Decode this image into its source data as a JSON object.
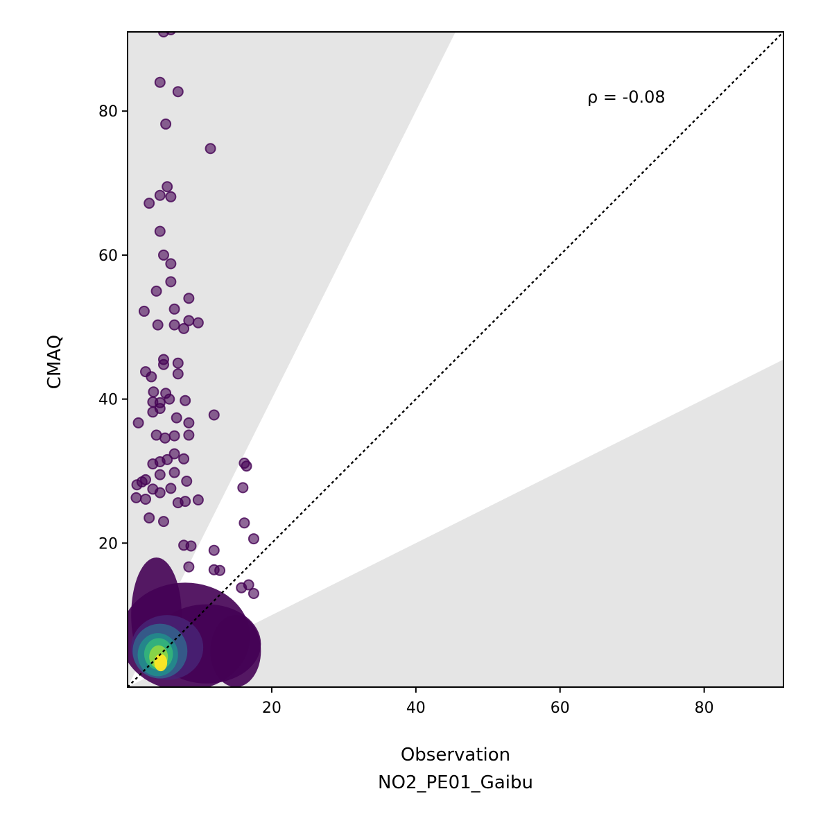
{
  "chart_data": {
    "type": "scatter",
    "title": "",
    "xlabel": "Observation",
    "xlabel_sub": "NO2_PE01_Gaibu",
    "ylabel": "CMAQ",
    "xlim": [
      0,
      91
    ],
    "ylim": [
      0,
      91
    ],
    "x_ticks": [
      20,
      40,
      60,
      80
    ],
    "y_ticks": [
      20,
      40,
      60,
      80
    ],
    "x_tick_labels": [
      "20",
      "40",
      "60",
      "80"
    ],
    "y_tick_labels": [
      "20",
      "40",
      "60",
      "80"
    ],
    "annotation": "ρ = -0.08",
    "reference_line": {
      "style": "dotted",
      "slope": 1,
      "color": "#000000"
    },
    "shaded_regions": [
      {
        "name": "model over factor 2",
        "slope_from": 2,
        "slope_to": "inf",
        "color": "#e5e5e5"
      },
      {
        "name": "model under factor 2",
        "slope_from": 0,
        "slope_to": 0.5,
        "color": "#e5e5e5"
      }
    ],
    "colormap": "viridis (point density)",
    "outlier_points": [
      [
        5,
        91
      ],
      [
        6,
        91.3
      ],
      [
        4.5,
        84
      ],
      [
        7,
        82.7
      ],
      [
        5.3,
        78.2
      ],
      [
        11.5,
        74.8
      ],
      [
        5.5,
        69.5
      ],
      [
        3,
        67.2
      ],
      [
        4.5,
        68.3
      ],
      [
        6,
        68.1
      ],
      [
        4.5,
        63.3
      ],
      [
        5,
        60
      ],
      [
        6,
        58.8
      ],
      [
        4,
        55
      ],
      [
        6,
        56.3
      ],
      [
        2.3,
        52.2
      ],
      [
        8.5,
        54
      ],
      [
        6.5,
        52.5
      ],
      [
        4.2,
        50.3
      ],
      [
        6.5,
        50.3
      ],
      [
        7.8,
        49.8
      ],
      [
        8.5,
        50.9
      ],
      [
        9.8,
        50.6
      ],
      [
        5,
        45.5
      ],
      [
        5,
        44.8
      ],
      [
        7,
        45
      ],
      [
        7,
        43.5
      ],
      [
        2.5,
        43.8
      ],
      [
        3.3,
        43.1
      ],
      [
        3.6,
        41
      ],
      [
        4.5,
        39.5
      ],
      [
        5.3,
        40.8
      ],
      [
        5.8,
        40
      ],
      [
        3.5,
        39.6
      ],
      [
        4.5,
        38.7
      ],
      [
        8,
        39.8
      ],
      [
        3.5,
        38.2
      ],
      [
        6.8,
        37.4
      ],
      [
        8.5,
        36.7
      ],
      [
        1.5,
        36.7
      ],
      [
        12,
        37.8
      ],
      [
        4,
        35
      ],
      [
        5.2,
        34.6
      ],
      [
        6.5,
        34.9
      ],
      [
        8.5,
        35
      ],
      [
        3.5,
        31
      ],
      [
        4.5,
        31.3
      ],
      [
        5.5,
        31.6
      ],
      [
        6.5,
        32.4
      ],
      [
        7.8,
        31.7
      ],
      [
        16.2,
        31.1
      ],
      [
        16.5,
        30.7
      ],
      [
        2,
        28.5
      ],
      [
        2.5,
        28.8
      ],
      [
        4.5,
        29.5
      ],
      [
        6.5,
        29.8
      ],
      [
        8.2,
        28.6
      ],
      [
        1.3,
        28.1
      ],
      [
        3.5,
        27.5
      ],
      [
        4.5,
        27
      ],
      [
        6,
        27.6
      ],
      [
        16,
        27.7
      ],
      [
        1.2,
        26.3
      ],
      [
        2.5,
        26.1
      ],
      [
        7,
        25.6
      ],
      [
        8,
        25.8
      ],
      [
        9.8,
        26
      ],
      [
        3,
        23.5
      ],
      [
        5,
        23
      ],
      [
        16.2,
        22.8
      ],
      [
        17.5,
        20.6
      ],
      [
        7.8,
        19.7
      ],
      [
        8.8,
        19.6
      ],
      [
        12,
        19
      ],
      [
        8.5,
        16.7
      ],
      [
        12,
        16.3
      ],
      [
        12.8,
        16.2
      ],
      [
        16.8,
        14.2
      ],
      [
        15.8,
        13.8
      ],
      [
        17.5,
        13
      ]
    ]
  }
}
